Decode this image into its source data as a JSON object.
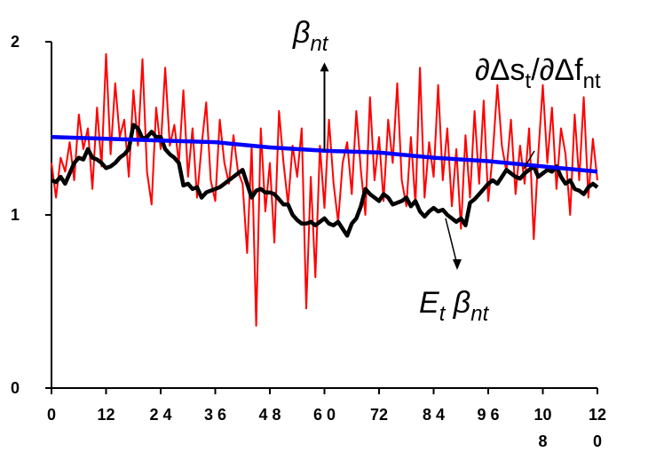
{
  "chart_data": {
    "type": "line",
    "xlim": [
      0,
      120
    ],
    "ylim": [
      0,
      2
    ],
    "x_ticks": [
      {
        "value": 0,
        "lines": [
          "0"
        ]
      },
      {
        "value": 12,
        "lines": [
          "12"
        ]
      },
      {
        "value": 24,
        "lines": [
          "2 4"
        ]
      },
      {
        "value": 36,
        "lines": [
          "3 6"
        ]
      },
      {
        "value": 48,
        "lines": [
          "4 8"
        ]
      },
      {
        "value": 60,
        "lines": [
          "6 0"
        ]
      },
      {
        "value": 72,
        "lines": [
          "72"
        ]
      },
      {
        "value": 84,
        "lines": [
          "8 4"
        ]
      },
      {
        "value": 96,
        "lines": [
          "9 6"
        ]
      },
      {
        "value": 108,
        "lines": [
          "10",
          "8"
        ]
      },
      {
        "value": 120,
        "lines": [
          "12",
          "0"
        ]
      }
    ],
    "y_ticks": [
      {
        "value": 0,
        "label": "0"
      },
      {
        "value": 1,
        "label": "1"
      },
      {
        "value": 2,
        "label": "2"
      }
    ],
    "grid": false,
    "series": [
      {
        "key": "beta",
        "color": "#ff0000",
        "x": [
          0,
          1,
          2,
          3,
          4,
          5,
          6,
          7,
          8,
          9,
          10,
          11,
          12,
          13,
          14,
          15,
          16,
          17,
          18,
          19,
          20,
          21,
          22,
          23,
          24,
          25,
          26,
          27,
          28,
          29,
          30,
          31,
          32,
          33,
          34,
          35,
          36,
          37,
          38,
          39,
          40,
          41,
          42,
          43,
          44,
          45,
          46,
          47,
          48,
          49,
          50,
          51,
          52,
          53,
          54,
          55,
          56,
          57,
          58,
          59,
          60,
          61,
          62,
          63,
          64,
          65,
          66,
          67,
          68,
          69,
          70,
          71,
          72,
          73,
          74,
          75,
          76,
          77,
          78,
          79,
          80,
          81,
          82,
          83,
          84,
          85,
          86,
          87,
          88,
          89,
          90,
          91,
          92,
          93,
          94,
          95,
          96,
          97,
          98,
          99,
          100,
          101,
          102,
          103,
          104,
          105,
          106,
          107,
          108,
          109,
          110,
          111,
          112,
          113,
          114,
          115,
          116,
          117,
          118,
          119,
          120
        ],
        "values": [
          1.3,
          1.1,
          1.33,
          1.25,
          1.42,
          1.2,
          1.58,
          1.38,
          1.5,
          1.15,
          1.62,
          1.28,
          1.93,
          1.35,
          1.76,
          1.45,
          1.55,
          1.22,
          1.72,
          1.4,
          1.9,
          1.25,
          1.06,
          1.62,
          1.38,
          1.85,
          1.4,
          1.52,
          1.3,
          1.72,
          1.22,
          1.5,
          1.1,
          1.4,
          1.65,
          1.2,
          1.08,
          1.55,
          1.3,
          1.18,
          1.46,
          1.25,
          1.18,
          0.78,
          1.4,
          0.36,
          1.5,
          1.02,
          1.3,
          0.84,
          1.6,
          1.3,
          1.06,
          1.4,
          1.22,
          1.5,
          0.46,
          1.22,
          0.64,
          1.4,
          1.04,
          1.55,
          1.18,
          0.96,
          1.3,
          1.42,
          1.12,
          1.6,
          1.26,
          1.0,
          1.68,
          1.2,
          1.45,
          1.08,
          1.55,
          1.3,
          1.76,
          1.2,
          1.05,
          1.45,
          1.06,
          1.85,
          1.1,
          1.42,
          1.22,
          1.75,
          1.2,
          1.5,
          1.05,
          1.38,
          0.92,
          1.46,
          1.1,
          1.6,
          1.18,
          1.66,
          1.08,
          1.35,
          1.75,
          1.4,
          1.25,
          1.55,
          1.12,
          1.4,
          1.18,
          1.5,
          0.86,
          1.35,
          1.75,
          1.3,
          1.62,
          1.15,
          1.5,
          1.35,
          1.0,
          1.58,
          1.2,
          1.68,
          1.1,
          1.44,
          1.2
        ]
      },
      {
        "key": "e_beta",
        "color": "#000000",
        "x": [
          0,
          1,
          2,
          3,
          4,
          5,
          6,
          7,
          8,
          9,
          10,
          11,
          12,
          13,
          14,
          15,
          16,
          17,
          18,
          19,
          20,
          21,
          22,
          23,
          24,
          25,
          26,
          27,
          28,
          29,
          30,
          31,
          32,
          33,
          34,
          35,
          36,
          37,
          38,
          39,
          40,
          41,
          42,
          43,
          44,
          45,
          46,
          47,
          48,
          49,
          50,
          51,
          52,
          53,
          54,
          55,
          56,
          57,
          58,
          59,
          60,
          61,
          62,
          63,
          64,
          65,
          66,
          67,
          68,
          69,
          70,
          71,
          72,
          73,
          74,
          75,
          76,
          77,
          78,
          79,
          80,
          81,
          82,
          83,
          84,
          85,
          86,
          87,
          88,
          89,
          90,
          91,
          92,
          93,
          94,
          95,
          96,
          97,
          98,
          99,
          100,
          101,
          102,
          103,
          104,
          105,
          106,
          107,
          108,
          109,
          110,
          111,
          112,
          113,
          114,
          115,
          116,
          117,
          118,
          119,
          120
        ],
        "values": [
          1.2,
          1.19,
          1.22,
          1.18,
          1.24,
          1.3,
          1.33,
          1.32,
          1.38,
          1.33,
          1.32,
          1.3,
          1.27,
          1.28,
          1.3,
          1.33,
          1.35,
          1.38,
          1.52,
          1.5,
          1.44,
          1.45,
          1.48,
          1.45,
          1.45,
          1.38,
          1.35,
          1.33,
          1.3,
          1.17,
          1.18,
          1.15,
          1.16,
          1.1,
          1.13,
          1.14,
          1.15,
          1.16,
          1.18,
          1.2,
          1.22,
          1.24,
          1.26,
          1.18,
          1.1,
          1.14,
          1.15,
          1.13,
          1.13,
          1.12,
          1.09,
          1.06,
          1.06,
          1.0,
          0.97,
          0.95,
          0.95,
          0.96,
          0.94,
          0.96,
          0.98,
          0.95,
          0.94,
          0.96,
          0.92,
          0.88,
          0.95,
          0.98,
          1.05,
          1.15,
          1.12,
          1.1,
          1.08,
          1.12,
          1.1,
          1.06,
          1.07,
          1.08,
          1.1,
          1.05,
          1.08,
          1.02,
          0.99,
          1.02,
          1.04,
          1.02,
          1.03,
          1.0,
          0.98,
          0.96,
          0.98,
          0.94,
          1.07,
          1.09,
          1.12,
          1.15,
          1.18,
          1.2,
          1.18,
          1.22,
          1.26,
          1.24,
          1.22,
          1.21,
          1.24,
          1.26,
          1.28,
          1.22,
          1.24,
          1.26,
          1.25,
          1.28,
          1.22,
          1.18,
          1.2,
          1.15,
          1.14,
          1.12,
          1.16,
          1.18,
          1.16
        ]
      },
      {
        "key": "partial",
        "color": "#0000ff",
        "x": [
          0,
          12,
          24,
          36,
          48,
          60,
          72,
          84,
          96,
          108,
          120
        ],
        "values": [
          1.45,
          1.44,
          1.43,
          1.42,
          1.39,
          1.37,
          1.36,
          1.33,
          1.31,
          1.28,
          1.25
        ]
      }
    ],
    "annotations": {
      "beta": {
        "base": "β",
        "sub": "nt",
        "arrow_x": 60,
        "arrow_from_y": 1.37,
        "arrow_to_y": 1.88
      },
      "partial": {
        "text": "∂Δs",
        "sub1": "t",
        "mid": "/∂Δf",
        "sub2": "nt"
      },
      "e_beta": {
        "base1": "E",
        "sub1": "t",
        "base2": " β",
        "sub2": "nt"
      }
    }
  }
}
